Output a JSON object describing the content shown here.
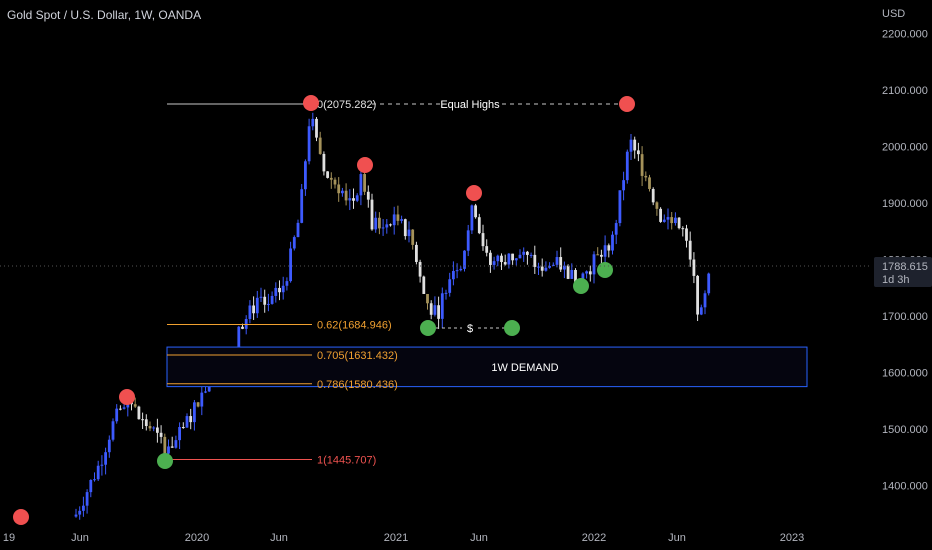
{
  "header": {
    "title": "Gold Spot / U.S. Dollar, 1W, OANDA"
  },
  "axis": {
    "currency": "USD",
    "y_ticks": [
      "2200.000",
      "2100.000",
      "2000.000",
      "1900.000",
      "1800.000",
      "1700.000",
      "1600.000",
      "1500.000",
      "1400.000"
    ],
    "x_ticks": [
      "19",
      "Jun",
      "2020",
      "Jun",
      "2021",
      "Jun",
      "2022",
      "Jun",
      "2023"
    ]
  },
  "price_tag": {
    "price": "1788.615",
    "countdown": "1d 3h"
  },
  "annotations": {
    "zero_level": "0(2075.282)",
    "equal_highs": "Equal Highs",
    "dollar": "$",
    "fib_062": "0.62(1684.946)",
    "fib_0705": "0.705(1631.432)",
    "fib_0786": "0.786(1580.436)",
    "fib_1": "1(1445.707)",
    "demand": "1W DEMAND"
  },
  "colors": {
    "background": "#000000",
    "bull": "#3d5afe",
    "bear": "#e0e0e0",
    "bear_alt": "#a5925a",
    "fib_orange": "#f0a030",
    "fib_red": "#ef5350",
    "demand_border": "#2962ff",
    "high_marker": "#f05050",
    "low_marker": "#4caf50"
  },
  "chart_data": {
    "type": "candlestick",
    "title": "Gold Spot / U.S. Dollar, 1W, OANDA",
    "ylim": [
      1330,
      2250
    ],
    "current_price": 1788.615,
    "key_points": [
      {
        "label": "peak",
        "x": "2020-08",
        "y": 2075
      },
      {
        "label": "lower high",
        "x": "2020-11",
        "y": 1965
      },
      {
        "label": "high",
        "x": "2021-06",
        "y": 1915
      },
      {
        "label": "high",
        "x": "2022-03",
        "y": 2070
      },
      {
        "label": "low",
        "x": "2021-03",
        "y": 1680
      },
      {
        "label": "low",
        "x": "2021-08",
        "y": 1680
      },
      {
        "label": "low",
        "x": "2021-12",
        "y": 1755
      },
      {
        "label": "low",
        "x": "2022-01",
        "y": 1780
      },
      {
        "label": "low",
        "x": "2022-07",
        "y": 1680
      }
    ],
    "fib_levels": [
      {
        "ratio": "0",
        "price": 2075.282
      },
      {
        "ratio": "0.62",
        "price": 1684.946
      },
      {
        "ratio": "0.705",
        "price": 1631.432
      },
      {
        "ratio": "0.786",
        "price": 1580.436
      },
      {
        "ratio": "1",
        "price": 1445.707
      }
    ],
    "zones": [
      {
        "name": "1W DEMAND",
        "from": 1575,
        "to": 1645
      }
    ]
  }
}
